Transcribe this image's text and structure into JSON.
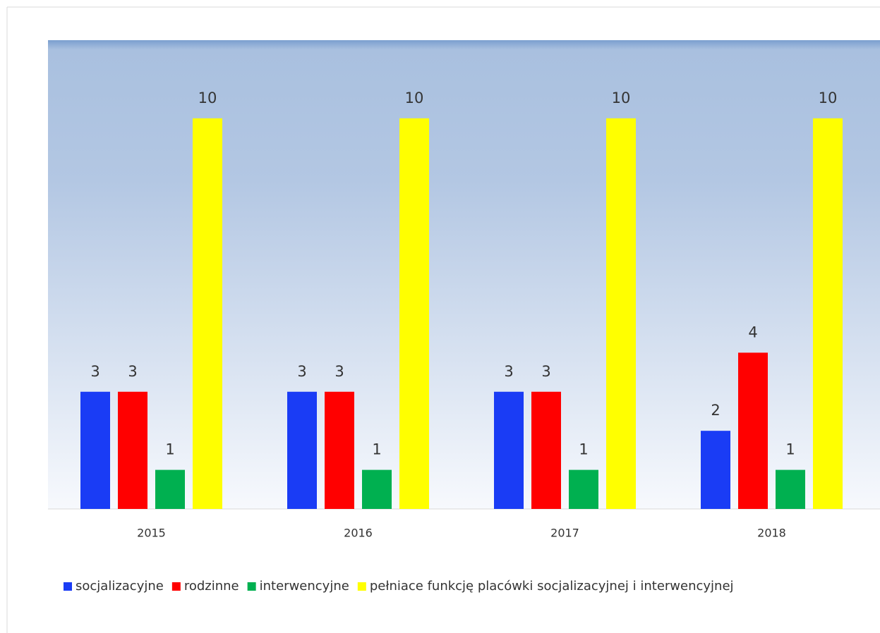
{
  "chart_data": {
    "type": "bar",
    "categories": [
      "2015",
      "2016",
      "2017",
      "2018"
    ],
    "series": [
      {
        "name": "socjalizacyjne",
        "color": "#1a3cf5",
        "values": [
          3,
          3,
          3,
          2
        ]
      },
      {
        "name": "rodzinne",
        "color": "#ff0000",
        "values": [
          3,
          3,
          3,
          4
        ]
      },
      {
        "name": "interwencyjne",
        "color": "#00b050",
        "values": [
          1,
          1,
          1,
          1
        ]
      },
      {
        "name": "pełniace funkcję placówki socjalizacyjnej i interwencyjnej",
        "color": "#ffff00",
        "values": [
          10,
          10,
          10,
          10
        ]
      }
    ],
    "ylim": [
      0,
      12
    ],
    "legend": "bottom"
  }
}
